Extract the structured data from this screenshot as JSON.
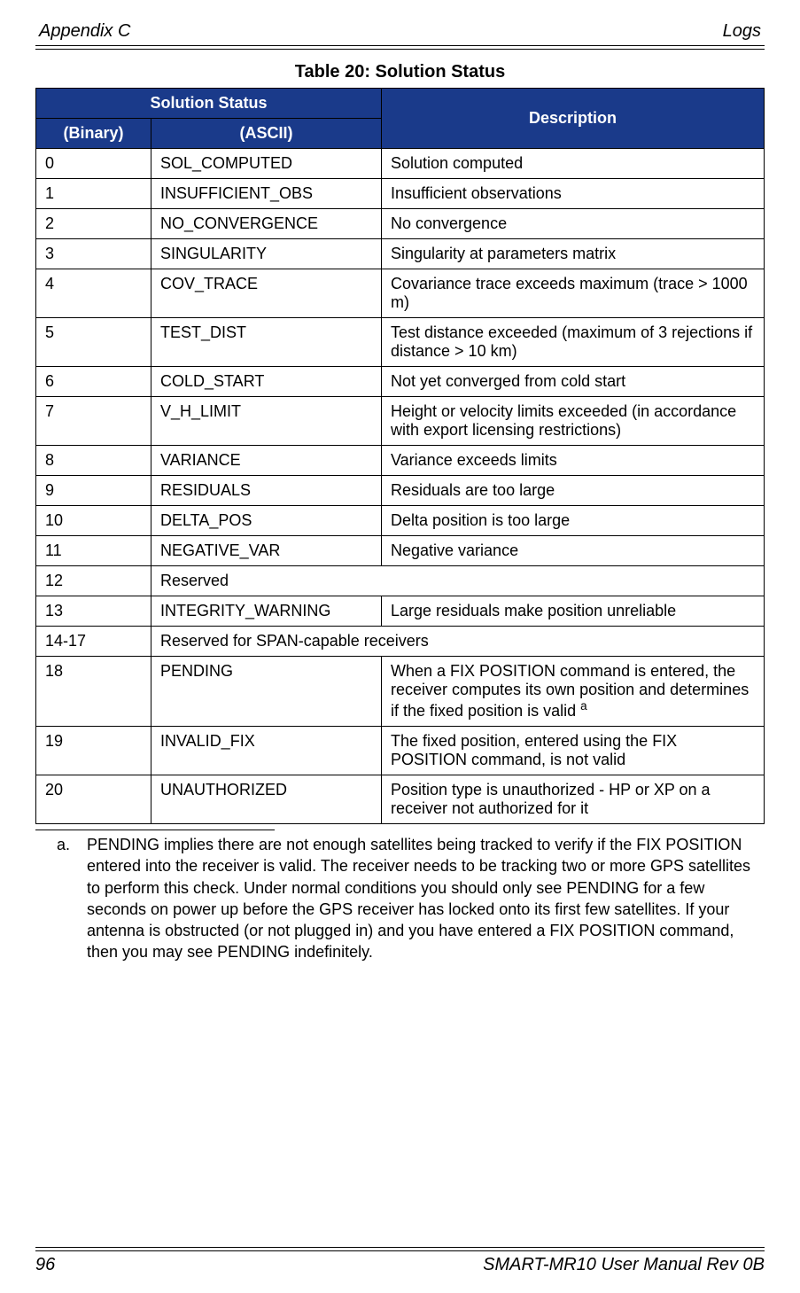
{
  "header": {
    "left": "Appendix C",
    "right": "Logs"
  },
  "table": {
    "title": "Table 20:  Solution Status",
    "head": {
      "groupLabel": "Solution Status",
      "descLabel": "Description",
      "binaryLabel": "(Binary)",
      "asciiLabel": "(ASCII)"
    },
    "rows": [
      {
        "bin": "0",
        "ascii": "SOL_COMPUTED",
        "desc": "Solution computed"
      },
      {
        "bin": "1",
        "ascii": "INSUFFICIENT_OBS",
        "desc": "Insufficient observations"
      },
      {
        "bin": "2",
        "ascii": "NO_CONVERGENCE",
        "desc": "No convergence"
      },
      {
        "bin": "3",
        "ascii": "SINGULARITY",
        "desc": "Singularity at parameters matrix"
      },
      {
        "bin": "4",
        "ascii": "COV_TRACE",
        "desc": "Covariance trace exceeds maximum (trace > 1000 m)"
      },
      {
        "bin": "5",
        "ascii": "TEST_DIST",
        "desc": "Test distance exceeded (maximum of 3 rejections if distance > 10 km)"
      },
      {
        "bin": "6",
        "ascii": "COLD_START",
        "desc": "Not yet converged from cold start"
      },
      {
        "bin": "7",
        "ascii": "V_H_LIMIT",
        "desc": "Height or velocity limits exceeded (in accordance with export licensing restrictions)"
      },
      {
        "bin": "8",
        "ascii": "VARIANCE",
        "desc": "Variance exceeds limits"
      },
      {
        "bin": "9",
        "ascii": "RESIDUALS",
        "desc": "Residuals are too large"
      },
      {
        "bin": "10",
        "ascii": "DELTA_POS",
        "desc": "Delta position is too large"
      },
      {
        "bin": "11",
        "ascii": "NEGATIVE_VAR",
        "desc": "Negative variance"
      },
      {
        "bin": "12",
        "ascii": "Reserved",
        "desc": "",
        "merged": true
      },
      {
        "bin": "13",
        "ascii": "INTEGRITY_WARNING",
        "desc": "Large residuals make position unreliable"
      },
      {
        "bin": "14-17",
        "ascii": "Reserved for SPAN-capable receivers",
        "desc": "",
        "merged": true
      },
      {
        "bin": "18",
        "ascii": "PENDING",
        "desc": "When a FIX POSITION command is entered, the receiver computes its own position and determines if the fixed position is valid ",
        "sup": "a"
      },
      {
        "bin": "19",
        "ascii": "INVALID_FIX",
        "desc": "The fixed position, entered using the FIX POSITION command, is not valid"
      },
      {
        "bin": "20",
        "ascii": "UNAUTHORIZED",
        "desc": "Position type is unauthorized - HP or XP on a receiver not authorized for it"
      }
    ]
  },
  "footnote": {
    "marker": "a.",
    "text": "PENDING implies there are not enough satellites being tracked to verify if the FIX POSITION entered into the receiver is valid. The receiver needs to be tracking two or more GPS satellites to perform this check. Under normal conditions you should only see PENDING for a few seconds on power up before the GPS receiver has locked onto its first few satellites. If your antenna is obstructed (or not plugged in) and you have entered a FIX POSITION command, then you may see PENDING indefinitely."
  },
  "footer": {
    "pageNumber": "96",
    "docTitle": "SMART-MR10 User Manual Rev 0B"
  },
  "colors": {
    "headerBg": "#1a3a8a",
    "headerText": "#ffffff",
    "border": "#000000",
    "pageBg": "#ffffff"
  }
}
